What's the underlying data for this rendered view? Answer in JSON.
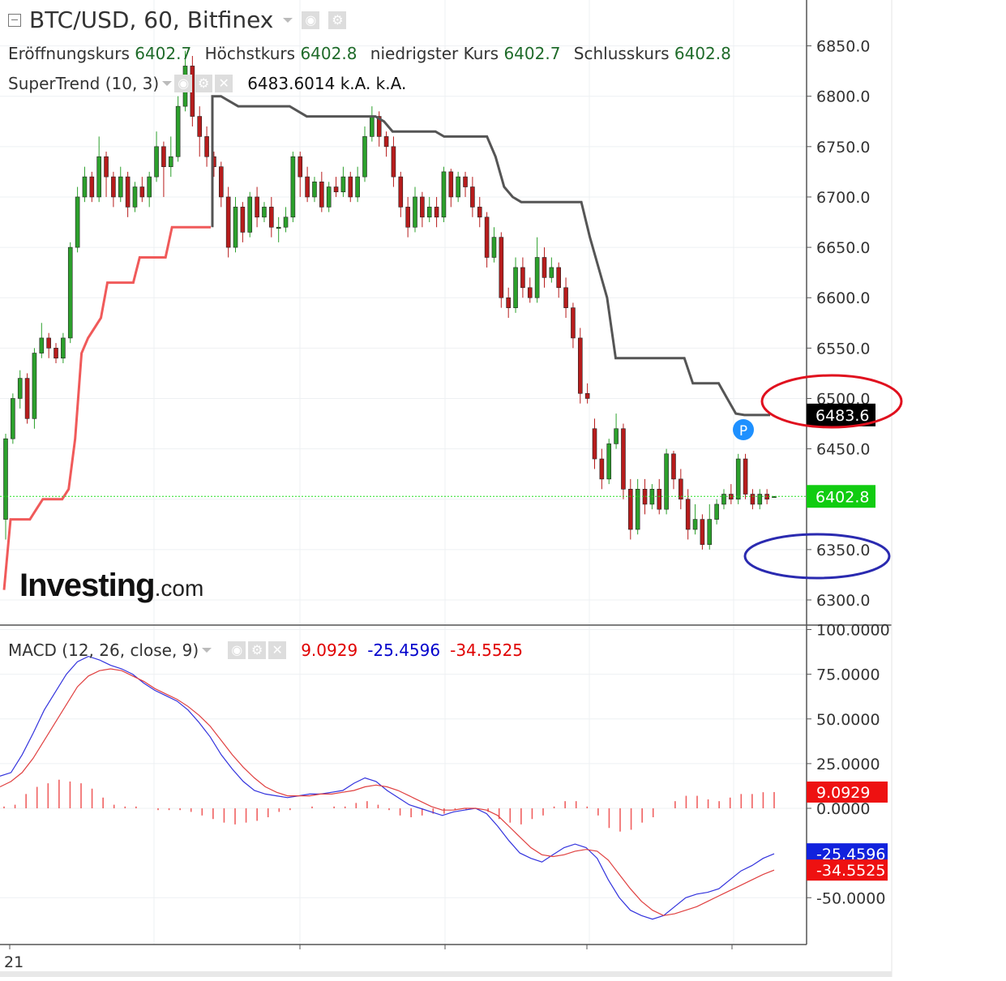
{
  "header": {
    "title": "BTC/USD, 60, Bitfinex",
    "ohlc": [
      {
        "label": "Eröffnungskurs",
        "value": "6402.7"
      },
      {
        "label": "Höchstkurs",
        "value": "6402.8"
      },
      {
        "label": "niedrigster Kurs",
        "value": "6402.7"
      },
      {
        "label": "Schlusskurs",
        "value": "6402.8"
      }
    ]
  },
  "supertrend": {
    "label": "SuperTrend (10, 3)",
    "values": "6483.6014  k.A.  k.A."
  },
  "macd_legend": {
    "label": "MACD (12, 26, close, 9)",
    "v1": "9.0929",
    "v2": "-25.4596",
    "v3": "-34.5525"
  },
  "logo": {
    "bold": "Investing",
    "suffix": ".com"
  },
  "colors": {
    "up": "#2ca02c",
    "down": "#b71c1c",
    "st_up": "#f05a5a",
    "st_down": "#555555",
    "macd": "#3333dd",
    "signal": "#e04040",
    "hist": "#f06060",
    "last_price": "#22dd22"
  },
  "chart_data": [
    {
      "type": "candlestick",
      "title": "BTC/USD, 60, Bitfinex",
      "ylim": [
        6290,
        6860
      ],
      "ticks": [
        "6300.0",
        "6350.0",
        "6400.0",
        "6450.0",
        "6500.0",
        "6550.0",
        "6600.0",
        "6650.0",
        "6700.0",
        "6750.0",
        "6800.0",
        "6850.0"
      ],
      "last_price": {
        "value": 6402.8,
        "label": "6402.8"
      },
      "supertrend_value": {
        "value": 6483.6,
        "label": "6483.6"
      },
      "marker": "P",
      "candles": [
        [
          6380,
          6460,
          6360,
          6465
        ],
        [
          6460,
          6500,
          6455,
          6505
        ],
        [
          6500,
          6520,
          6490,
          6528
        ],
        [
          6520,
          6480,
          6475,
          6525
        ],
        [
          6480,
          6545,
          6470,
          6550
        ],
        [
          6545,
          6560,
          6540,
          6575
        ],
        [
          6560,
          6550,
          6540,
          6565
        ],
        [
          6550,
          6540,
          6535,
          6555
        ],
        [
          6540,
          6560,
          6535,
          6565
        ],
        [
          6560,
          6650,
          6555,
          6655
        ],
        [
          6650,
          6700,
          6645,
          6710
        ],
        [
          6700,
          6720,
          6695,
          6730
        ],
        [
          6720,
          6700,
          6695,
          6725
        ],
        [
          6700,
          6740,
          6695,
          6760
        ],
        [
          6740,
          6720,
          6700,
          6745
        ],
        [
          6720,
          6700,
          6690,
          6725
        ],
        [
          6700,
          6720,
          6695,
          6730
        ],
        [
          6720,
          6690,
          6680,
          6725
        ],
        [
          6690,
          6710,
          6685,
          6715
        ],
        [
          6710,
          6700,
          6695,
          6720
        ],
        [
          6700,
          6720,
          6690,
          6725
        ],
        [
          6720,
          6750,
          6715,
          6765
        ],
        [
          6750,
          6730,
          6700,
          6755
        ],
        [
          6730,
          6740,
          6720,
          6760
        ],
        [
          6740,
          6790,
          6735,
          6800
        ],
        [
          6790,
          6830,
          6785,
          6845
        ],
        [
          6830,
          6780,
          6770,
          6840
        ],
        [
          6780,
          6760,
          6740,
          6790
        ],
        [
          6760,
          6740,
          6730,
          6770
        ],
        [
          6740,
          6730,
          6720,
          6745
        ],
        [
          6730,
          6700,
          6690,
          6735
        ],
        [
          6700,
          6650,
          6640,
          6710
        ],
        [
          6650,
          6690,
          6645,
          6700
        ],
        [
          6690,
          6665,
          6655,
          6695
        ],
        [
          6665,
          6700,
          6660,
          6705
        ],
        [
          6700,
          6680,
          6670,
          6710
        ],
        [
          6680,
          6690,
          6675,
          6695
        ],
        [
          6690,
          6670,
          6660,
          6700
        ],
        [
          6670,
          6670,
          6655,
          6680
        ],
        [
          6670,
          6680,
          6665,
          6690
        ],
        [
          6680,
          6740,
          6675,
          6745
        ],
        [
          6740,
          6720,
          6700,
          6745
        ],
        [
          6720,
          6700,
          6695,
          6730
        ],
        [
          6700,
          6715,
          6695,
          6720
        ],
        [
          6715,
          6690,
          6685,
          6725
        ],
        [
          6690,
          6710,
          6685,
          6715
        ],
        [
          6710,
          6705,
          6700,
          6720
        ],
        [
          6705,
          6720,
          6700,
          6730
        ],
        [
          6720,
          6700,
          6695,
          6725
        ],
        [
          6700,
          6720,
          6695,
          6730
        ],
        [
          6720,
          6760,
          6715,
          6770
        ],
        [
          6760,
          6780,
          6755,
          6790
        ],
        [
          6780,
          6760,
          6750,
          6785
        ],
        [
          6760,
          6750,
          6740,
          6765
        ],
        [
          6750,
          6720,
          6710,
          6760
        ],
        [
          6720,
          6690,
          6680,
          6725
        ],
        [
          6690,
          6670,
          6660,
          6700
        ],
        [
          6670,
          6700,
          6665,
          6710
        ],
        [
          6700,
          6680,
          6670,
          6705
        ],
        [
          6680,
          6690,
          6675,
          6700
        ],
        [
          6690,
          6680,
          6670,
          6700
        ],
        [
          6680,
          6725,
          6675,
          6730
        ],
        [
          6725,
          6700,
          6690,
          6728
        ],
        [
          6700,
          6720,
          6695,
          6725
        ],
        [
          6720,
          6710,
          6700,
          6725
        ],
        [
          6710,
          6690,
          6680,
          6720
        ],
        [
          6690,
          6680,
          6670,
          6700
        ],
        [
          6680,
          6640,
          6630,
          6685
        ],
        [
          6640,
          6660,
          6635,
          6670
        ],
        [
          6660,
          6600,
          6590,
          6665
        ],
        [
          6600,
          6590,
          6580,
          6610
        ],
        [
          6590,
          6630,
          6585,
          6640
        ],
        [
          6630,
          6610,
          6600,
          6640
        ],
        [
          6610,
          6600,
          6595,
          6620
        ],
        [
          6600,
          6640,
          6595,
          6660
        ],
        [
          6640,
          6620,
          6610,
          6650
        ],
        [
          6620,
          6630,
          6615,
          6640
        ],
        [
          6630,
          6610,
          6600,
          6635
        ],
        [
          6610,
          6590,
          6580,
          6620
        ],
        [
          6590,
          6560,
          6550,
          6595
        ],
        [
          6560,
          6505,
          6495,
          6570
        ],
        [
          6505,
          6500,
          6495,
          6515
        ],
        [
          6470,
          6440,
          6430,
          6480
        ],
        [
          6440,
          6420,
          6410,
          6450
        ],
        [
          6420,
          6455,
          6415,
          6460
        ],
        [
          6455,
          6470,
          6450,
          6485
        ],
        [
          6470,
          6410,
          6400,
          6475
        ],
        [
          6410,
          6370,
          6360,
          6420
        ],
        [
          6370,
          6410,
          6365,
          6420
        ],
        [
          6410,
          6395,
          6385,
          6420
        ],
        [
          6395,
          6410,
          6390,
          6415
        ],
        [
          6410,
          6390,
          6385,
          6420
        ],
        [
          6390,
          6445,
          6385,
          6450
        ],
        [
          6445,
          6420,
          6410,
          6448
        ],
        [
          6420,
          6400,
          6390,
          6430
        ],
        [
          6400,
          6370,
          6360,
          6410
        ],
        [
          6370,
          6380,
          6365,
          6395
        ],
        [
          6380,
          6355,
          6350,
          6385
        ],
        [
          6355,
          6380,
          6350,
          6395
        ],
        [
          6380,
          6395,
          6375,
          6400
        ],
        [
          6395,
          6405,
          6390,
          6410
        ],
        [
          6405,
          6400,
          6395,
          6415
        ],
        [
          6400,
          6440,
          6395,
          6445
        ],
        [
          6440,
          6405,
          6400,
          6445
        ],
        [
          6405,
          6395,
          6390,
          6410
        ],
        [
          6395,
          6405,
          6390,
          6410
        ],
        [
          6405,
          6400,
          6395,
          6410
        ],
        [
          6402.7,
          6402.8,
          6402.7,
          6402.8
        ]
      ],
      "supertrend_up": [
        6310,
        6380,
        6380,
        6380,
        6380,
        6390,
        6400,
        6400,
        6400,
        6400,
        6410,
        6460,
        6545,
        6560,
        6570,
        6580,
        6615,
        6615,
        6615,
        6615,
        6615,
        6640,
        6640,
        6640,
        6640,
        6640,
        6670,
        6670,
        6670,
        6670,
        6670,
        6670,
        6670
      ],
      "supertrend_down": [
        6800,
        6800,
        6795,
        6790,
        6790,
        6790,
        6790,
        6790,
        6790,
        6790,
        6785,
        6780,
        6780,
        6780,
        6780,
        6780,
        6780,
        6780,
        6780,
        6780,
        6775,
        6765,
        6765,
        6765,
        6765,
        6765,
        6765,
        6760,
        6760,
        6760,
        6760,
        6760,
        6760,
        6740,
        6710,
        6700,
        6695,
        6695,
        6695,
        6695,
        6695,
        6695,
        6695,
        6695,
        6660,
        6630,
        6600,
        6540,
        6540,
        6540,
        6540,
        6540,
        6540,
        6540,
        6540,
        6540,
        6515,
        6515,
        6515,
        6515,
        6500,
        6485,
        6483.6,
        6483.6,
        6483.6,
        6483.6
      ]
    },
    {
      "type": "line",
      "title": "MACD (12, 26, close, 9)",
      "ylim": [
        -65,
        103
      ],
      "ticks": [
        "100.0000",
        "75.0000",
        "50.0000",
        "25.0000",
        "0.0000",
        "-50.0000"
      ],
      "series": [
        {
          "name": "MACD",
          "values": [
            18,
            20,
            30,
            42,
            55,
            65,
            75,
            82,
            85,
            83,
            80,
            78,
            75,
            70,
            66,
            63,
            60,
            55,
            48,
            40,
            30,
            22,
            15,
            10,
            8,
            7,
            6,
            7,
            8,
            8,
            9,
            10,
            14,
            17,
            15,
            10,
            6,
            2,
            0,
            -2,
            -4,
            -2,
            -1,
            0,
            -3,
            -10,
            -18,
            -25,
            -28,
            -30,
            -26,
            -22,
            -20,
            -22,
            -28,
            -40,
            -50,
            -57,
            -60,
            -62,
            -60,
            -55,
            -50,
            -48,
            -47,
            -45,
            -40,
            -35,
            -32,
            -28,
            -25.4596
          ]
        },
        {
          "name": "Signal",
          "values": [
            12,
            15,
            20,
            28,
            38,
            48,
            58,
            68,
            74,
            77,
            78,
            77,
            74,
            71,
            67,
            64,
            61,
            57,
            52,
            46,
            38,
            30,
            23,
            17,
            12,
            9,
            7,
            7,
            7,
            8,
            8,
            9,
            10,
            12,
            13,
            12,
            10,
            7,
            4,
            1,
            -1,
            -1,
            0,
            0,
            -1,
            -4,
            -10,
            -16,
            -22,
            -26,
            -27,
            -26,
            -24,
            -23,
            -24,
            -29,
            -37,
            -45,
            -52,
            -57,
            -60,
            -59,
            -57,
            -55,
            -52,
            -49,
            -46,
            -43,
            -40,
            -37,
            -34.5525
          ]
        }
      ],
      "histogram": [
        1,
        2,
        8,
        12,
        14,
        16,
        15,
        14,
        11,
        6,
        2,
        1,
        1,
        0,
        -1,
        -1,
        -1,
        -2,
        -4,
        -6,
        -8,
        -9,
        -8,
        -7,
        -5,
        -2,
        -1,
        0,
        1,
        0,
        1,
        1,
        3,
        4,
        2,
        -1,
        -4,
        -5,
        -4,
        -3,
        -3,
        -1,
        -1,
        0,
        -2,
        -6,
        -8,
        -9,
        -6,
        -4,
        1,
        4,
        4,
        1,
        -4,
        -11,
        -13,
        -12,
        -8,
        -5,
        0,
        4,
        7,
        7,
        5,
        4,
        6,
        8,
        8,
        9,
        9.0929
      ],
      "last_values": [
        {
          "label": "9.0929",
          "color": "#ee1111"
        },
        {
          "label": "-25.4596",
          "color": "#1122dd"
        },
        {
          "label": "-34.5525",
          "color": "#ee1111"
        }
      ]
    }
  ],
  "x_axis": {
    "labels": [
      "21"
    ]
  }
}
